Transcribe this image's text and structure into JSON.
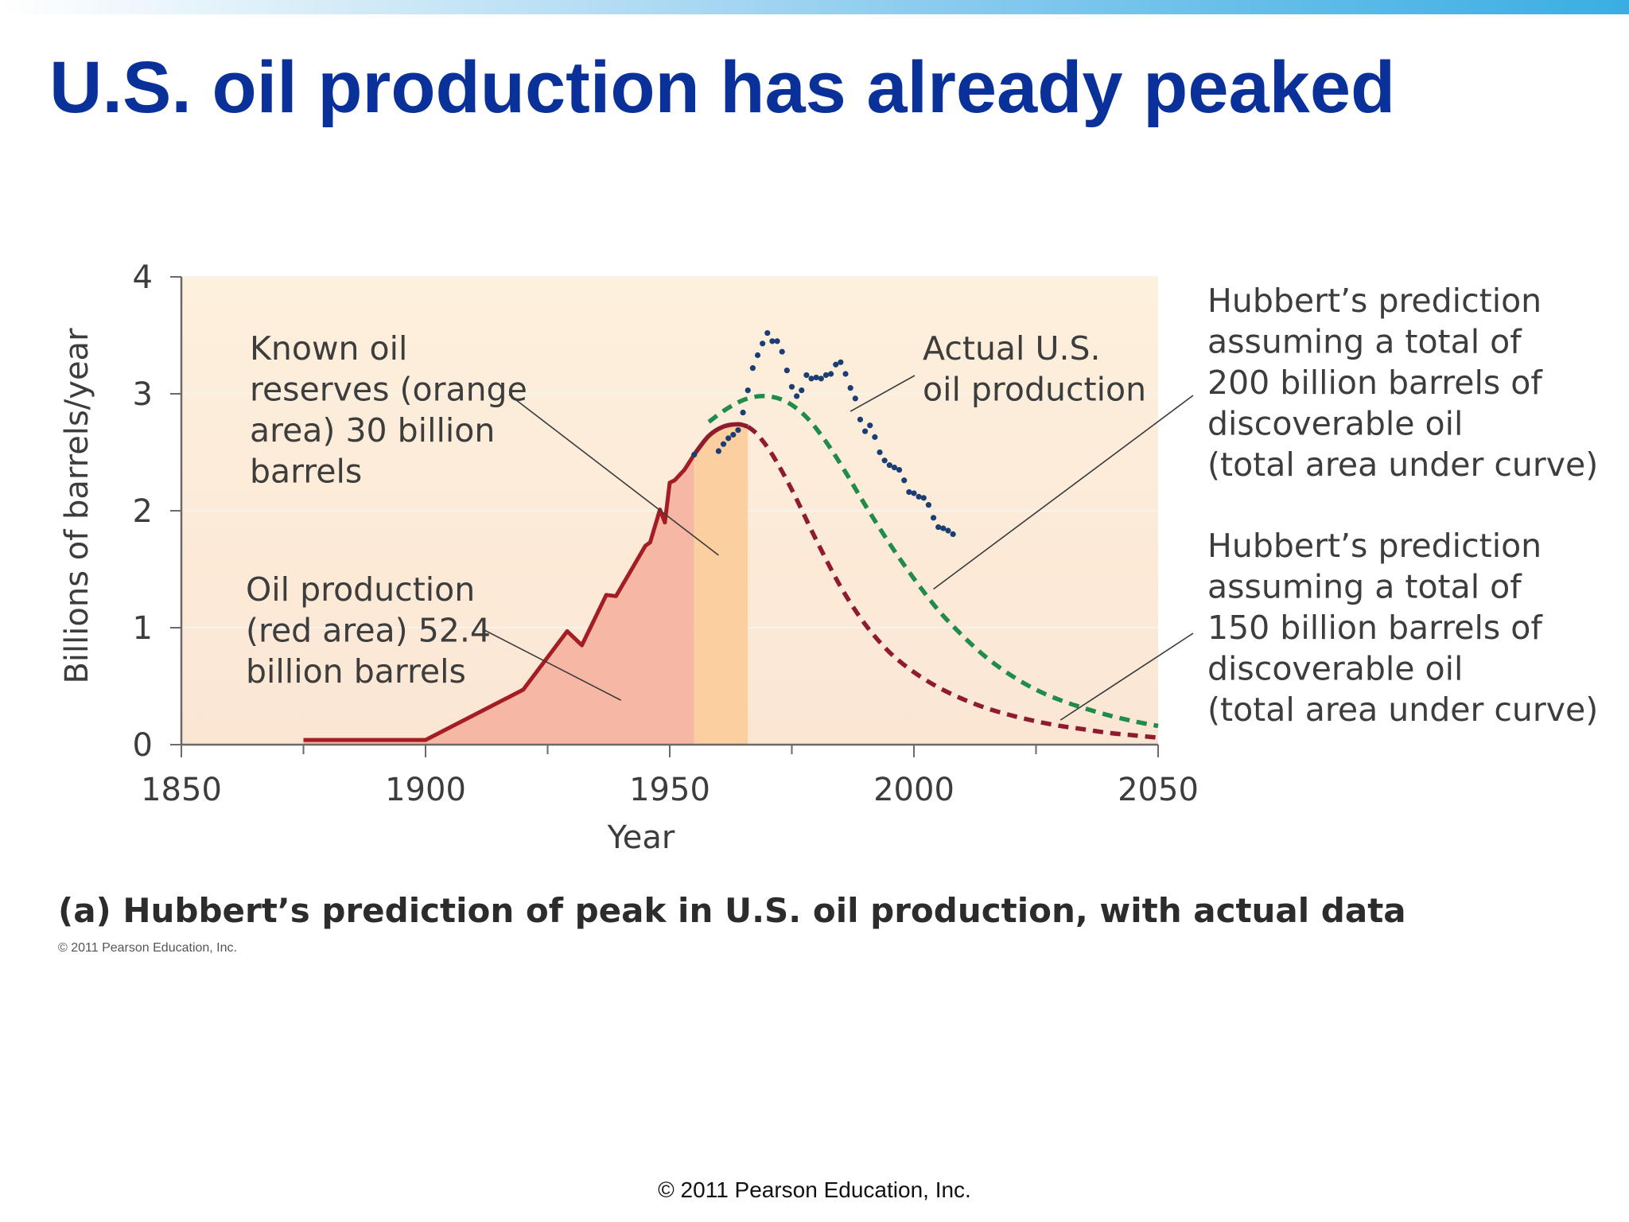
{
  "slide": {
    "title": "U.S. oil production has already peaked",
    "copyright": "© 2011 Pearson Education, Inc."
  },
  "figure": {
    "caption": "(a) Hubbert’s prediction of peak in U.S. oil production, with actual data",
    "copyright": "© 2011 Pearson Education, Inc."
  },
  "colors": {
    "title": "#0a3199",
    "historical_line": "#a51d24",
    "prediction_200": "#1f8c4a",
    "prediction_150": "#8e1c2e",
    "actual_points": "#1a3e73",
    "red_area": "#f6b8a4",
    "orange_area": "#fbcfa0",
    "plot_background": "#fbe6d0"
  },
  "chart_data": {
    "type": "line",
    "xlabel": "Year",
    "ylabel": "Billions of barrels/year",
    "xlim": [
      1850,
      2050
    ],
    "ylim": [
      0,
      4
    ],
    "x_ticks": [
      "1850",
      "1900",
      "1950",
      "2000",
      "2050"
    ],
    "y_ticks": [
      "0",
      "1",
      "2",
      "3",
      "4"
    ],
    "grid": true,
    "series": [
      {
        "kind": "historical",
        "style": "solid",
        "x": [
          1875,
          1900,
          1920,
          1929,
          1932,
          1937,
          1939,
          1945,
          1946,
          1948,
          1949,
          1950,
          1951,
          1953,
          1955
        ],
        "y": [
          0.04,
          0.04,
          0.47,
          0.97,
          0.85,
          1.28,
          1.27,
          1.7,
          1.73,
          2.01,
          1.9,
          2.24,
          2.26,
          2.35,
          2.48
        ]
      },
      {
        "kind": "prediction_150",
        "style": "dashed",
        "x": [
          1955,
          1958,
          1961,
          1964,
          1966,
          1968,
          1971,
          1975,
          1980,
          1985,
          1990,
          1995,
          2000,
          2005,
          2010,
          2015,
          2020,
          2025,
          2030,
          2035,
          2040,
          2045,
          2050
        ],
        "y": [
          2.48,
          2.64,
          2.72,
          2.74,
          2.72,
          2.65,
          2.48,
          2.18,
          1.75,
          1.35,
          1.03,
          0.79,
          0.62,
          0.49,
          0.39,
          0.31,
          0.25,
          0.2,
          0.16,
          0.13,
          0.1,
          0.08,
          0.06
        ]
      },
      {
        "kind": "prediction_200",
        "style": "dashed",
        "x": [
          1958,
          1962,
          1966,
          1970,
          1974,
          1978,
          1982,
          1986,
          1990,
          1995,
          2000,
          2005,
          2010,
          2015,
          2020,
          2025,
          2030,
          2035,
          2040,
          2045,
          2050
        ],
        "y": [
          2.76,
          2.88,
          2.96,
          2.98,
          2.93,
          2.8,
          2.59,
          2.33,
          2.05,
          1.72,
          1.42,
          1.15,
          0.93,
          0.74,
          0.59,
          0.47,
          0.38,
          0.31,
          0.25,
          0.2,
          0.16
        ]
      },
      {
        "kind": "actual",
        "style": "dotted",
        "x": [
          1955,
          1960,
          1961,
          1962,
          1963,
          1964,
          1965,
          1966,
          1967,
          1968,
          1969,
          1970,
          1971,
          1972,
          1973,
          1974,
          1975,
          1976,
          1977,
          1978,
          1979,
          1980,
          1981,
          1982,
          1983,
          1984,
          1985,
          1986,
          1987,
          1988,
          1989,
          1990,
          1991,
          1992,
          1993,
          1994,
          1995,
          1996,
          1997,
          1998,
          1999,
          2000,
          2001,
          2002,
          2003,
          2004,
          2005,
          2006,
          2007,
          2008
        ],
        "y": [
          2.48,
          2.51,
          2.57,
          2.62,
          2.65,
          2.69,
          2.84,
          3.03,
          3.22,
          3.33,
          3.43,
          3.52,
          3.45,
          3.45,
          3.36,
          3.2,
          3.06,
          2.98,
          3.03,
          3.16,
          3.13,
          3.14,
          3.13,
          3.16,
          3.17,
          3.25,
          3.27,
          3.17,
          3.05,
          2.96,
          2.78,
          2.68,
          2.73,
          2.63,
          2.5,
          2.43,
          2.39,
          2.37,
          2.35,
          2.26,
          2.16,
          2.15,
          2.12,
          2.11,
          2.05,
          1.94,
          1.86,
          1.85,
          1.83,
          1.8
        ]
      }
    ],
    "shaded_areas": [
      {
        "kind": "red",
        "x_range": [
          1875,
          1955
        ]
      },
      {
        "kind": "orange",
        "x_range": [
          1955,
          1966
        ]
      }
    ],
    "annotations": [
      {
        "kind": "known_reserves",
        "text": [
          "Known oil",
          "reserves (orange",
          "area) 30 billion",
          "barrels"
        ],
        "points_to": [
          1960,
          1.62
        ]
      },
      {
        "kind": "oil_production",
        "text": [
          "Oil production",
          "(red area) 52.4",
          "billion barrels"
        ],
        "points_to": [
          1940,
          0.38
        ]
      },
      {
        "kind": "actual",
        "text": [
          "Actual U.S.",
          "oil production"
        ],
        "points_to": [
          1987,
          2.85
        ]
      },
      {
        "kind": "hubbert_200",
        "text": [
          "Hubbert’s prediction",
          "assuming a total of",
          "200 billion barrels of",
          "discoverable oil",
          "(total area under curve)"
        ],
        "points_to": [
          2004,
          1.33
        ]
      },
      {
        "kind": "hubbert_150",
        "text": [
          "Hubbert’s prediction",
          "assuming a total of",
          "150 billion barrels of",
          "discoverable oil",
          "(total area under curve)"
        ],
        "points_to": [
          2030,
          0.21
        ]
      }
    ]
  }
}
